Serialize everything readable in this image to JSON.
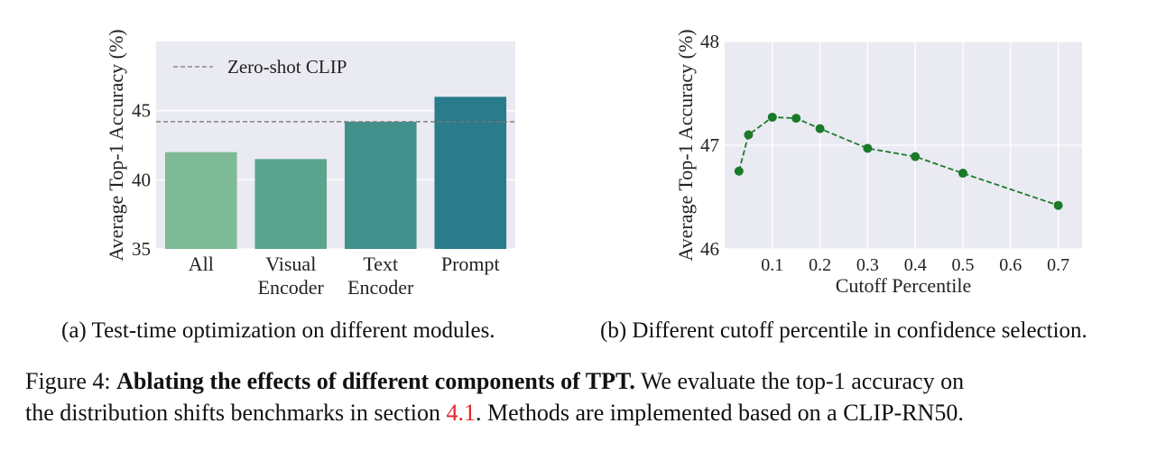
{
  "chart_data": [
    {
      "type": "bar",
      "categories": [
        [
          "All"
        ],
        [
          "Visual",
          "Encoder"
        ],
        [
          "Text",
          "Encoder"
        ],
        [
          "Prompt"
        ]
      ],
      "values": [
        42.0,
        41.5,
        44.2,
        46.0
      ],
      "bar_colors": [
        "#7eba95",
        "#5ba58f",
        "#42908c",
        "#2a7b8b"
      ],
      "ylabel": "Average Top-1 Accuracy (%)",
      "xlabel": "",
      "ylim": [
        35,
        50
      ],
      "yticks": [
        35,
        40,
        45
      ],
      "reference_line": {
        "label": "Zero-shot CLIP",
        "value": 44.2,
        "color": "#777777",
        "style": "dashed"
      },
      "legend_position": "top-left",
      "grid": true,
      "background": "#eaeaf2"
    },
    {
      "type": "line",
      "x": [
        0.03,
        0.05,
        0.1,
        0.15,
        0.2,
        0.3,
        0.4,
        0.5,
        0.7
      ],
      "y": [
        46.75,
        47.1,
        47.27,
        47.26,
        47.16,
        46.97,
        46.89,
        46.73,
        46.42
      ],
      "color": "#1a7a2a",
      "line_style": "dashed",
      "marker": "circle",
      "xlabel": "Cutoff Percentile",
      "ylabel": "Average Top-1 Accuracy (%)",
      "xlim": [
        0.0,
        0.75
      ],
      "ylim": [
        46,
        48
      ],
      "xticks": [
        0.1,
        0.2,
        0.3,
        0.4,
        0.5,
        0.6,
        0.7
      ],
      "yticks": [
        46,
        47,
        48
      ],
      "grid": true,
      "background": "#eaeaf2"
    }
  ],
  "captions": {
    "a": "(a) Test-time optimization on different modules.",
    "b": "(b) Different cutoff percentile in confidence selection."
  },
  "figure_caption": {
    "label": "Figure 4: ",
    "bold": "Ablating the effects of different components of TPT.",
    "text1": " We evaluate the top-1 accuracy on",
    "text2_pre": "the distribution shifts benchmarks in section ",
    "ref": "4.1",
    "text2_post": ". Methods are implemented based on a CLIP-RN50."
  }
}
